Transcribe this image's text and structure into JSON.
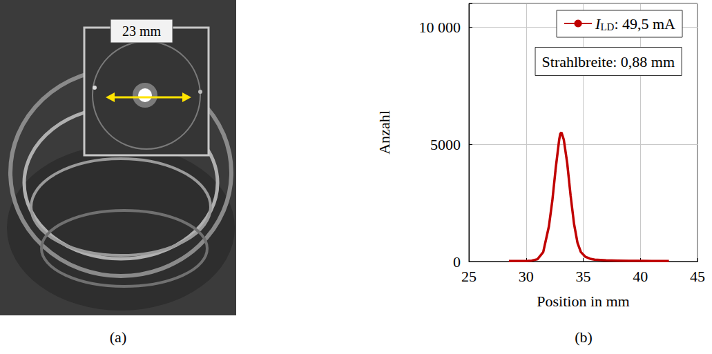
{
  "photo": {
    "label": "(a)",
    "annotation": "23 mm"
  },
  "chart_data": {
    "type": "line",
    "label": "(b)",
    "x_label": "Position in mm",
    "y_label": "Anzahl",
    "annotations": [
      "Strahlbreite: 0,88 mm"
    ],
    "x": [
      28.5,
      29,
      29.5,
      30,
      30.5,
      31,
      31.5,
      32,
      32.3,
      32.6,
      32.9,
      33.0,
      33.1,
      33.3,
      33.6,
      33.9,
      34.2,
      34.5,
      34.8,
      35.2,
      35.6,
      36,
      37,
      38,
      39,
      40,
      41,
      42,
      42.5
    ],
    "series": [
      {
        "name": "ILD: 49,5 mA",
        "color": "#c00000",
        "values": [
          20,
          20,
          20,
          25,
          40,
          100,
          400,
          1500,
          2600,
          4000,
          5200,
          5450,
          5500,
          5200,
          4200,
          2800,
          1600,
          800,
          400,
          200,
          120,
          80,
          50,
          40,
          30,
          30,
          25,
          20,
          20
        ]
      }
    ],
    "xlim": [
      25,
      45
    ],
    "xticks": [
      25,
      30,
      35,
      40,
      45
    ],
    "ylim": [
      0,
      11000
    ],
    "yticks": [
      0,
      5000,
      {
        "value": 10000,
        "label": "10 000"
      }
    ],
    "grid": true,
    "legend": "upper right"
  }
}
